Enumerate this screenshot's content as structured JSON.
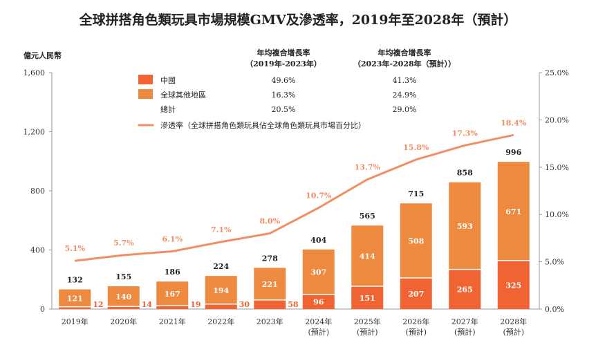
{
  "chart_data": {
    "type": "bar",
    "title": "全球拼搭角色類玩具市場規模GMV及滲透率，2019年至2028年（預計）",
    "ylabel": "億元人民幣",
    "ylim": [
      0,
      1600
    ],
    "yticks": [
      "0",
      "400",
      "800",
      "1,200",
      "1,600"
    ],
    "y2lim": [
      0,
      25
    ],
    "y2ticks": [
      "0.0%",
      "5.0%",
      "10.0%",
      "15.0%",
      "20.0%",
      "25.0%"
    ],
    "categories": [
      "2019年",
      "2020年",
      "2021年",
      "2022年",
      "2023年",
      "2024年",
      "2025年",
      "2026年",
      "2027年",
      "2028年"
    ],
    "category_notes": [
      "",
      "",
      "",
      "",
      "",
      "(預計)",
      "(預計)",
      "(預計)",
      "(預計)",
      "(預計)"
    ],
    "series": [
      {
        "name": "中國",
        "color": "#EF6432",
        "values": [
          12,
          14,
          19,
          30,
          58,
          96,
          151,
          207,
          265,
          325
        ]
      },
      {
        "name": "全球其他地區",
        "color": "#EE8A3F",
        "values": [
          121,
          140,
          167,
          194,
          221,
          307,
          414,
          508,
          593,
          671
        ]
      }
    ],
    "totals": [
      132,
      155,
      186,
      224,
      278,
      404,
      565,
      715,
      858,
      996
    ],
    "line": {
      "name": "滲透率（全球拼搭角色類玩具佔全球角色類玩具市場百分比）",
      "color": "#F28E64",
      "axis": "right",
      "values": [
        5.1,
        5.7,
        6.1,
        7.1,
        8.0,
        10.7,
        13.7,
        15.8,
        17.3,
        18.4
      ],
      "labels": [
        "5.1%",
        "5.7%",
        "6.1%",
        "7.1%",
        "8.0%",
        "10.7%",
        "13.7%",
        "15.8%",
        "17.3%",
        "18.4%"
      ]
    },
    "legend_table": {
      "headers": [
        [
          "年均複合增長率",
          "（2019年-2023年）"
        ],
        [
          "年均複合增長率",
          "（2023年-2028年（預計））"
        ]
      ],
      "rows": [
        {
          "label": "中國",
          "values": [
            "49.6%",
            "41.3%"
          ]
        },
        {
          "label": "全球其他地區",
          "values": [
            "16.3%",
            "24.9%"
          ]
        },
        {
          "label": "總計",
          "values": [
            "20.5%",
            "29.0%"
          ]
        }
      ]
    },
    "grid": false,
    "legend_placement": "top"
  }
}
